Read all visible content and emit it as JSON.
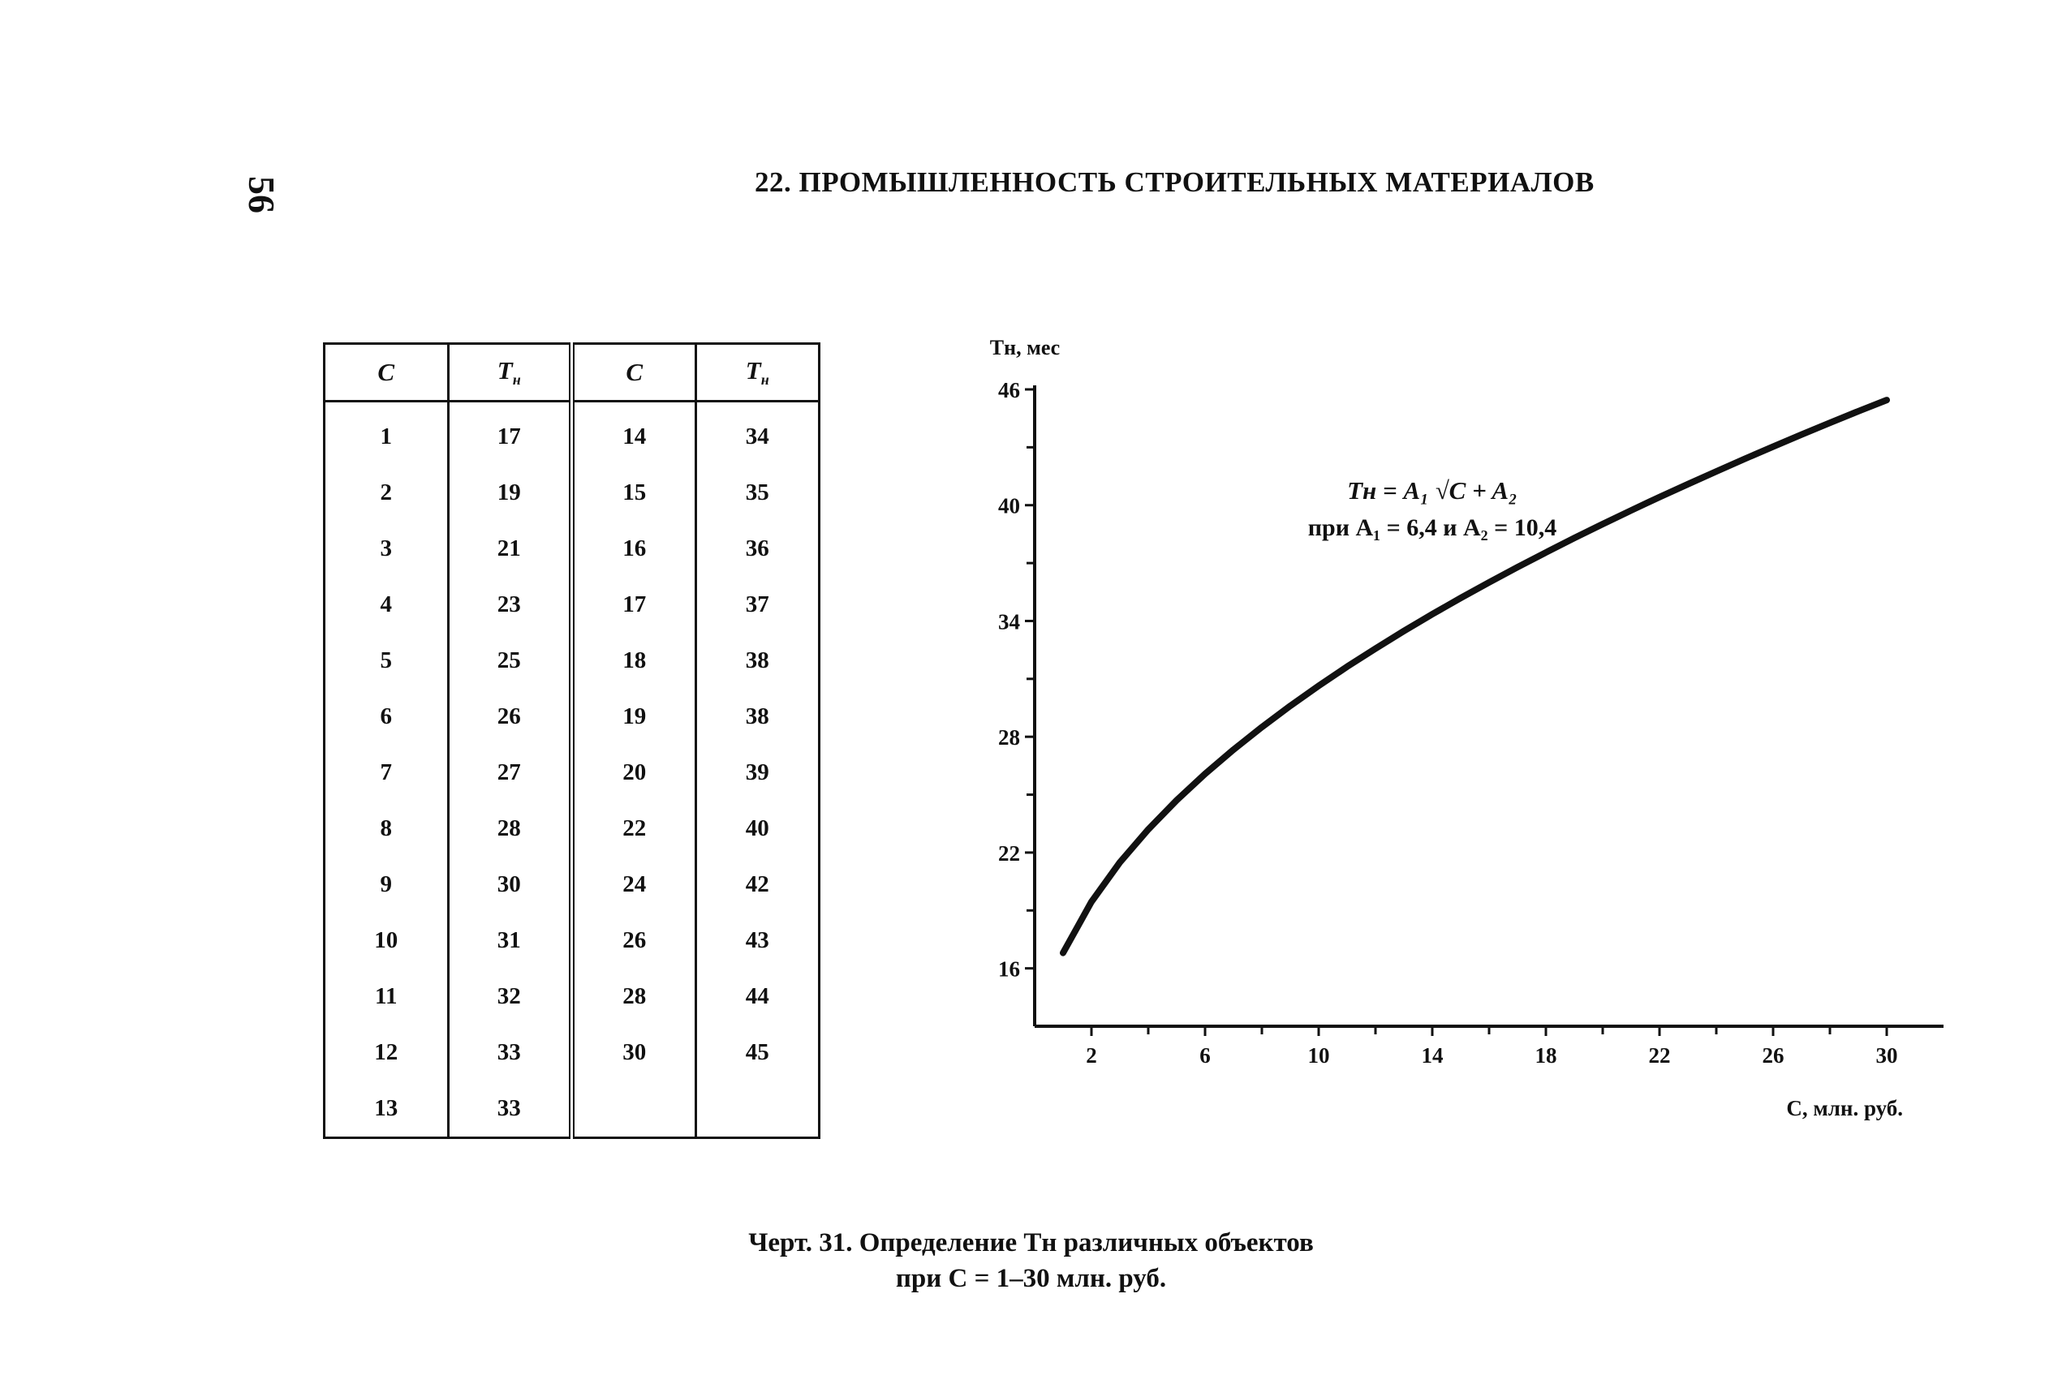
{
  "page_number": "56",
  "header": "22. ПРОМЫШЛЕННОСТЬ СТРОИТЕЛЬНЫХ МАТЕРИАЛОВ",
  "table": {
    "headers": [
      {
        "main": "C",
        "sub": ""
      },
      {
        "main": "T",
        "sub": "н"
      },
      {
        "main": "C",
        "sub": ""
      },
      {
        "main": "T",
        "sub": "н"
      }
    ],
    "rows": [
      [
        "1",
        "17",
        "14",
        "34"
      ],
      [
        "2",
        "19",
        "15",
        "35"
      ],
      [
        "3",
        "21",
        "16",
        "36"
      ],
      [
        "4",
        "23",
        "17",
        "37"
      ],
      [
        "5",
        "25",
        "18",
        "38"
      ],
      [
        "6",
        "26",
        "19",
        "38"
      ],
      [
        "7",
        "27",
        "20",
        "39"
      ],
      [
        "8",
        "28",
        "22",
        "40"
      ],
      [
        "9",
        "30",
        "24",
        "42"
      ],
      [
        "10",
        "31",
        "26",
        "43"
      ],
      [
        "11",
        "32",
        "28",
        "44"
      ],
      [
        "12",
        "33",
        "30",
        "45"
      ],
      [
        "13",
        "33",
        "",
        ""
      ]
    ]
  },
  "chart_data": {
    "type": "line",
    "ylabel": "Tн, мес",
    "xlabel": "C, млн. руб.",
    "xlim": [
      0,
      31
    ],
    "ylim": [
      13,
      46
    ],
    "x_ticks": [
      2,
      6,
      10,
      14,
      18,
      22,
      26,
      30
    ],
    "y_ticks": [
      16,
      22,
      28,
      34,
      40,
      46
    ],
    "formula_line1": "Tн = A₁ √C + A₂",
    "formula_line2": "при A₁ = 6,4 и A₂ = 10,4",
    "series": [
      {
        "x": [
          1,
          2,
          3,
          4,
          5,
          6,
          7,
          8,
          9,
          10,
          11,
          12,
          13,
          14,
          15,
          16,
          17,
          18,
          19,
          20,
          21,
          22,
          23,
          24,
          25,
          26,
          27,
          28,
          29,
          30
        ],
        "y": [
          16.8,
          19.45,
          21.49,
          23.2,
          24.71,
          26.08,
          27.33,
          28.5,
          29.6,
          30.64,
          31.63,
          32.57,
          33.48,
          34.35,
          35.19,
          36.0,
          36.79,
          37.55,
          38.3,
          39.02,
          39.73,
          40.42,
          41.09,
          41.75,
          42.4,
          43.03,
          43.66,
          44.27,
          44.87,
          45.45
        ]
      }
    ]
  },
  "caption": {
    "line1_prefix": "Черт. 31.",
    "line1_text": "Определение Tн различных объектов",
    "line2": "при C = 1–30 млн. руб."
  }
}
